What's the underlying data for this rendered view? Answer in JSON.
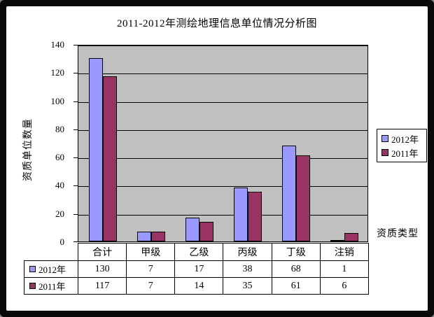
{
  "chart_data": {
    "type": "bar",
    "title": "2011-2012年测绘地理信息单位情况分析图",
    "xlabel": "资质类型",
    "ylabel": "资质单位数量",
    "categories": [
      "合计",
      "甲级",
      "乙级",
      "丙级",
      "丁级",
      "注销"
    ],
    "series": [
      {
        "name": "2012年",
        "color": "#9999ff",
        "values": [
          130,
          7,
          17,
          38,
          68,
          1
        ]
      },
      {
        "name": "2011年",
        "color": "#993366",
        "values": [
          117,
          7,
          14,
          35,
          61,
          6
        ]
      }
    ],
    "ylim": [
      0,
      140
    ],
    "yticks": [
      0,
      20,
      40,
      60,
      80,
      100,
      120,
      140
    ],
    "grid": true,
    "legend_position": "right",
    "has_data_table": true,
    "colors": {
      "plot_background": "#c0c0c0",
      "gridline": "#000000",
      "frame": "#0a0a0a",
      "canvas": "#ffffff"
    }
  }
}
